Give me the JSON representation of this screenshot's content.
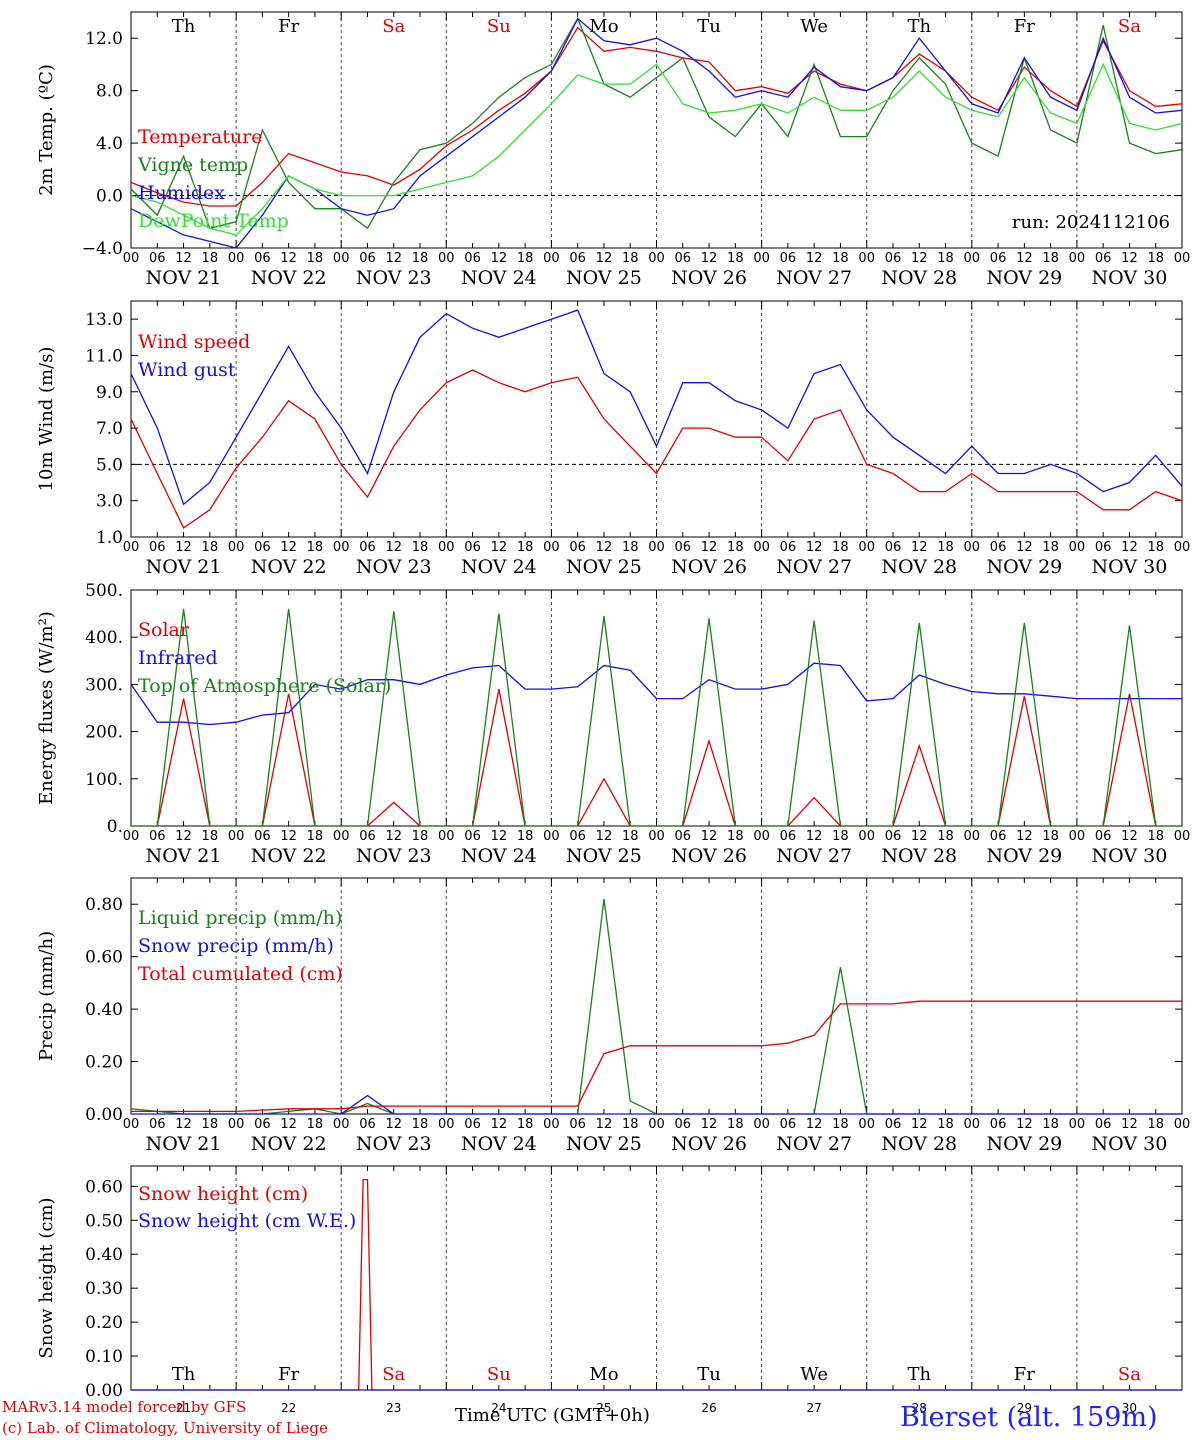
{
  "footer": {
    "credit_line1": "MARv3.14 model forced by GFS",
    "credit_line2": "(c) Lab. of Climatology, University of Liege",
    "xlabel": "Time UTC (GMT+0h)",
    "station": "Bierset (alt. 159m)"
  },
  "colors": {
    "red": "#e00000",
    "darkgreen": "#1a801a",
    "blue": "#1010e0",
    "lightgreen": "#30e030",
    "purple": "#800080"
  },
  "chart_data": [
    {
      "type": "line",
      "ylabel": "2m Temp. (ºC)",
      "ylim": [
        -4,
        14
      ],
      "yticks": [
        "12.0",
        "8.0",
        "4.0",
        "0.0",
        "−4.0"
      ],
      "ytick_values": [
        12,
        8,
        4,
        0,
        -4
      ],
      "hline": 0,
      "annotation": "run: 2024112106",
      "weekdays": [
        "Th",
        "Fr",
        "Sa",
        "Su",
        "Mo",
        "Tu",
        "We",
        "Th",
        "Fr",
        "Sa"
      ],
      "weekend_days": [
        2,
        3,
        9
      ],
      "date_labels": [
        "NOV 21",
        "NOV 22",
        "NOV 23",
        "NOV 24",
        "NOV 25",
        "NOV 26",
        "NOV 27",
        "NOV 28",
        "NOV 29",
        "NOV 30"
      ],
      "hour_ticks": [
        "00",
        "06",
        "12",
        "18"
      ],
      "x_hours": [
        0,
        6,
        12,
        18,
        24,
        30,
        36,
        42,
        48,
        54,
        60,
        66,
        72,
        78,
        84,
        90,
        96,
        102,
        108,
        114,
        120,
        126,
        132,
        138,
        144,
        150,
        156,
        162,
        168,
        174,
        180,
        186,
        192,
        198,
        204,
        210,
        216,
        222,
        228,
        234,
        240
      ],
      "series": [
        {
          "name": "Temperature",
          "color": "#e00000",
          "values": [
            1.0,
            0.2,
            -0.5,
            -0.8,
            -0.8,
            1.0,
            3.2,
            2.5,
            1.8,
            1.5,
            0.8,
            2.0,
            3.8,
            5.0,
            6.5,
            7.8,
            9.5,
            12.8,
            11.0,
            11.3,
            11.0,
            10.5,
            10.2,
            8.0,
            8.3,
            7.8,
            9.5,
            8.5,
            8.0,
            9.0,
            10.8,
            9.5,
            7.5,
            6.5,
            9.8,
            8.0,
            6.8,
            11.8,
            8.0,
            6.8,
            7.0
          ]
        },
        {
          "name": "Vigne temp",
          "color": "#1a801a",
          "values": [
            0.5,
            -1.5,
            3.0,
            -2.5,
            -2.0,
            5.0,
            1.0,
            -1.0,
            -1.0,
            -2.5,
            1.0,
            3.5,
            4.0,
            5.5,
            7.5,
            9.0,
            10.0,
            13.5,
            8.5,
            7.5,
            9.0,
            10.5,
            6.0,
            4.5,
            7.0,
            4.5,
            10.0,
            4.5,
            4.5,
            8.0,
            10.5,
            8.5,
            4.0,
            3.0,
            10.5,
            5.0,
            4.0,
            13.0,
            4.0,
            3.2,
            3.5
          ]
        },
        {
          "name": "Humidex",
          "color": "#1010e0",
          "values": [
            -1.0,
            -2.0,
            -3.0,
            -3.5,
            -4.0,
            -1.5,
            1.5,
            0.5,
            -1.0,
            -1.5,
            -1.0,
            1.5,
            3.0,
            4.5,
            6.0,
            7.5,
            9.5,
            13.5,
            11.8,
            11.5,
            12.0,
            11.0,
            9.5,
            7.5,
            8.0,
            7.5,
            9.8,
            8.3,
            8.0,
            9.0,
            12.0,
            9.5,
            7.0,
            6.3,
            10.5,
            7.5,
            6.5,
            12.0,
            7.5,
            6.3,
            6.5
          ]
        },
        {
          "name": "DewPoint Temp",
          "color": "#30e030",
          "values": [
            0.0,
            -0.5,
            -1.5,
            -2.5,
            -3.0,
            -1.0,
            1.5,
            0.5,
            0.0,
            0.0,
            0.0,
            0.5,
            1.0,
            1.5,
            3.0,
            5.0,
            7.0,
            9.2,
            8.5,
            8.5,
            10.0,
            7.0,
            6.3,
            6.5,
            7.0,
            6.3,
            7.5,
            6.5,
            6.5,
            7.5,
            9.5,
            7.5,
            6.5,
            6.0,
            9.0,
            6.3,
            5.5,
            10.0,
            5.5,
            5.0,
            5.5
          ]
        }
      ]
    },
    {
      "type": "line",
      "ylabel": "10m Wind (m/s)",
      "ylim": [
        1,
        14
      ],
      "yticks": [
        "13.0",
        "11.0",
        "9.0",
        "7.0",
        "5.0",
        "3.0",
        "1.0"
      ],
      "ytick_values": [
        13,
        11,
        9,
        7,
        5,
        3,
        1
      ],
      "hline": 5,
      "date_labels": [
        "NOV 21",
        "NOV 22",
        "NOV 23",
        "NOV 24",
        "NOV 25",
        "NOV 26",
        "NOV 27",
        "NOV 28",
        "NOV 29",
        "NOV 30"
      ],
      "hour_ticks": [
        "00",
        "06",
        "12",
        "18"
      ],
      "x_hours": [
        0,
        6,
        12,
        18,
        24,
        30,
        36,
        42,
        48,
        54,
        60,
        66,
        72,
        78,
        84,
        90,
        96,
        102,
        108,
        114,
        120,
        126,
        132,
        138,
        144,
        150,
        156,
        162,
        168,
        174,
        180,
        186,
        192,
        198,
        204,
        210,
        216,
        222,
        228,
        234,
        240
      ],
      "series": [
        {
          "name": "Wind speed",
          "color": "#e00000",
          "values": [
            7.5,
            4.5,
            1.5,
            2.5,
            4.8,
            6.5,
            8.5,
            7.5,
            5.0,
            3.2,
            6.0,
            8.0,
            9.5,
            10.2,
            9.5,
            9.0,
            9.5,
            9.8,
            7.5,
            6.0,
            4.5,
            7.0,
            7.0,
            6.5,
            6.5,
            5.2,
            7.5,
            8.0,
            5.0,
            4.5,
            3.5,
            3.5,
            4.5,
            3.5,
            3.5,
            3.5,
            3.5,
            2.5,
            2.5,
            3.5,
            3.0
          ]
        },
        {
          "name": "Wind gust",
          "color": "#1010e0",
          "values": [
            10.0,
            7.0,
            2.8,
            4.0,
            6.5,
            9.0,
            11.5,
            9.0,
            7.0,
            4.5,
            9.0,
            12.0,
            13.3,
            12.5,
            12.0,
            12.5,
            13.0,
            13.5,
            10.0,
            9.0,
            6.0,
            9.5,
            9.5,
            8.5,
            8.0,
            7.0,
            10.0,
            10.5,
            8.0,
            6.5,
            5.5,
            4.5,
            6.0,
            4.5,
            4.5,
            5.0,
            4.5,
            3.5,
            4.0,
            5.5,
            3.8
          ]
        }
      ]
    },
    {
      "type": "line",
      "ylabel": "Energy fluxes (W/m²)",
      "ylim": [
        0,
        500
      ],
      "yticks": [
        "500.",
        "400.",
        "300.",
        "200.",
        "100.",
        "0."
      ],
      "ytick_values": [
        500,
        400,
        300,
        200,
        100,
        0
      ],
      "date_labels": [
        "NOV 21",
        "NOV 22",
        "NOV 23",
        "NOV 24",
        "NOV 25",
        "NOV 26",
        "NOV 27",
        "NOV 28",
        "NOV 29",
        "NOV 30"
      ],
      "hour_ticks": [
        "00",
        "06",
        "12",
        "18"
      ],
      "x_hours": [
        0,
        6,
        12,
        18,
        24,
        30,
        36,
        42,
        48,
        54,
        60,
        66,
        72,
        78,
        84,
        90,
        96,
        102,
        108,
        114,
        120,
        126,
        132,
        138,
        144,
        150,
        156,
        162,
        168,
        174,
        180,
        186,
        192,
        198,
        204,
        210,
        216,
        222,
        228,
        234,
        240
      ],
      "series": [
        {
          "name": "Solar",
          "color": "#e00000",
          "values": [
            0,
            0,
            270,
            0,
            0,
            0,
            280,
            0,
            0,
            0,
            50,
            0,
            0,
            0,
            290,
            0,
            0,
            0,
            100,
            0,
            0,
            0,
            180,
            0,
            0,
            0,
            60,
            0,
            0,
            0,
            170,
            0,
            0,
            0,
            275,
            0,
            0,
            0,
            280,
            0,
            0
          ]
        },
        {
          "name": "Infrared",
          "color": "#1010e0",
          "values": [
            300,
            220,
            220,
            215,
            220,
            235,
            240,
            300,
            290,
            310,
            310,
            300,
            320,
            335,
            340,
            290,
            290,
            295,
            340,
            330,
            270,
            270,
            310,
            290,
            290,
            300,
            345,
            340,
            265,
            270,
            320,
            300,
            285,
            280,
            280,
            275,
            270,
            270,
            270,
            270,
            270
          ]
        },
        {
          "name": "Top of Atmosphere (Solar)",
          "color": "#1a801a",
          "values": [
            0,
            0,
            460,
            0,
            0,
            0,
            460,
            0,
            0,
            0,
            455,
            0,
            0,
            0,
            450,
            0,
            0,
            0,
            445,
            0,
            0,
            0,
            440,
            0,
            0,
            0,
            435,
            0,
            0,
            0,
            430,
            0,
            0,
            0,
            430,
            0,
            0,
            0,
            425,
            0,
            0
          ]
        }
      ]
    },
    {
      "type": "line",
      "ylabel": "Precip (mm/h)",
      "ylim": [
        0,
        0.9
      ],
      "yticks": [
        "0.80",
        "0.60",
        "0.40",
        "0.20",
        "0.00"
      ],
      "ytick_values": [
        0.8,
        0.6,
        0.4,
        0.2,
        0.0
      ],
      "date_labels": [
        "NOV 21",
        "NOV 22",
        "NOV 23",
        "NOV 24",
        "NOV 25",
        "NOV 26",
        "NOV 27",
        "NOV 28",
        "NOV 29",
        "NOV 30"
      ],
      "hour_ticks": [
        "00",
        "06",
        "12",
        "18"
      ],
      "x_hours": [
        0,
        6,
        12,
        18,
        24,
        30,
        36,
        42,
        48,
        54,
        60,
        66,
        72,
        78,
        84,
        90,
        96,
        102,
        108,
        114,
        120,
        126,
        132,
        138,
        144,
        150,
        156,
        162,
        168,
        174,
        180,
        186,
        192,
        198,
        204,
        210,
        216,
        222,
        228,
        234,
        240
      ],
      "series": [
        {
          "name": "Liquid precip (mm/h)",
          "color": "#1a801a",
          "values": [
            0.02,
            0.01,
            0.0,
            0.0,
            0.0,
            0.0,
            0.01,
            0.02,
            0.0,
            0.04,
            0.0,
            0.0,
            0.0,
            0.0,
            0.0,
            0.0,
            0.0,
            0.0,
            0.82,
            0.05,
            0.0,
            0.0,
            0.0,
            0.0,
            0.0,
            0.0,
            0.0,
            0.56,
            0.0,
            0.0,
            0.0,
            0.0,
            0.0,
            0.0,
            0.0,
            0.0,
            0.0,
            0.0,
            0.0,
            0.0,
            0.0
          ]
        },
        {
          "name": "Snow precip (mm/h)",
          "color": "#1010e0",
          "values": [
            0.0,
            0.0,
            0.0,
            0.0,
            0.0,
            0.0,
            0.0,
            0.0,
            0.0,
            0.07,
            0.0,
            0.0,
            0.0,
            0.0,
            0.0,
            0.0,
            0.0,
            0.0,
            0.0,
            0.0,
            0.0,
            0.0,
            0.0,
            0.0,
            0.0,
            0.0,
            0.0,
            0.0,
            0.0,
            0.0,
            0.0,
            0.0,
            0.0,
            0.0,
            0.0,
            0.0,
            0.0,
            0.0,
            0.0,
            0.0,
            0.0
          ]
        },
        {
          "name": "Total cumulated (cm)",
          "color": "#e00000",
          "values": [
            0.01,
            0.01,
            0.01,
            0.01,
            0.01,
            0.015,
            0.02,
            0.02,
            0.02,
            0.03,
            0.03,
            0.03,
            0.03,
            0.03,
            0.03,
            0.03,
            0.03,
            0.03,
            0.23,
            0.26,
            0.26,
            0.26,
            0.26,
            0.26,
            0.26,
            0.27,
            0.3,
            0.42,
            0.42,
            0.42,
            0.43,
            0.43,
            0.43,
            0.43,
            0.43,
            0.43,
            0.43,
            0.43,
            0.43,
            0.43,
            0.43
          ]
        }
      ]
    },
    {
      "type": "line",
      "ylabel": "Snow height (cm)",
      "ylim": [
        0,
        0.66
      ],
      "yticks": [
        "0.60",
        "0.50",
        "0.40",
        "0.30",
        "0.20",
        "0.10",
        "0.00"
      ],
      "ytick_values": [
        0.6,
        0.5,
        0.4,
        0.3,
        0.2,
        0.1,
        0.0
      ],
      "weekdays": [
        "Th",
        "Fr",
        "Sa",
        "Su",
        "Mo",
        "Tu",
        "We",
        "Th",
        "Fr",
        "Sa"
      ],
      "weekend_days": [
        2,
        3,
        9
      ],
      "day_numbers": [
        "21",
        "22",
        "23",
        "24",
        "25",
        "26",
        "27",
        "28",
        "29",
        "30"
      ],
      "series": [
        {
          "name": "Snow height (cm)",
          "color": "#e00000",
          "x_hours": [
            0,
            52,
            53,
            54,
            55,
            240
          ],
          "values": [
            0,
            0,
            0.62,
            0.62,
            0,
            0
          ]
        },
        {
          "name": "Snow height (cm W.E.)",
          "color": "#1010e0",
          "x_hours": [
            0,
            240
          ],
          "values": [
            0,
            0
          ]
        }
      ]
    }
  ]
}
